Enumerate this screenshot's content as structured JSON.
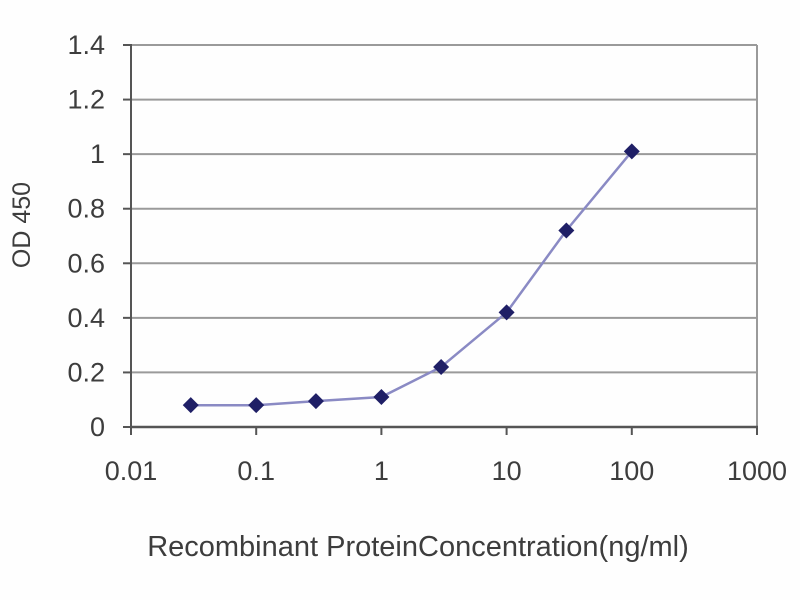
{
  "chart_data": {
    "type": "line",
    "title": "",
    "xlabel": "Recombinant ProteinConcentration(ng/ml)",
    "ylabel": "OD 450",
    "x_scale": "log",
    "xlim": [
      0.01,
      1000
    ],
    "ylim": [
      0,
      1.4
    ],
    "x_ticks": [
      0.01,
      0.1,
      1,
      10,
      100,
      1000
    ],
    "x_tick_labels": [
      "0.01",
      "0.1",
      "1",
      "10",
      "100",
      "1000"
    ],
    "y_ticks": [
      0,
      0.2,
      0.4,
      0.6,
      0.8,
      1,
      1.2,
      1.4
    ],
    "y_tick_labels": [
      "0",
      "0.2",
      "0.4",
      "0.6",
      "0.8",
      "1",
      "1.2",
      "1.4"
    ],
    "grid": "horizontal",
    "legend": "none",
    "series": [
      {
        "name": "OD450",
        "marker": "diamond",
        "line_color": "#8a8ac4",
        "marker_color": "#1f1f66",
        "x": [
          0.03,
          0.1,
          0.3,
          1,
          3,
          10,
          30,
          100
        ],
        "y": [
          0.08,
          0.08,
          0.095,
          0.11,
          0.22,
          0.42,
          0.72,
          1.01
        ]
      }
    ]
  },
  "colors": {
    "gridline": "#9a9a9a",
    "axis": "#555555",
    "text": "#3d3d3d",
    "background": "#fefefe"
  }
}
